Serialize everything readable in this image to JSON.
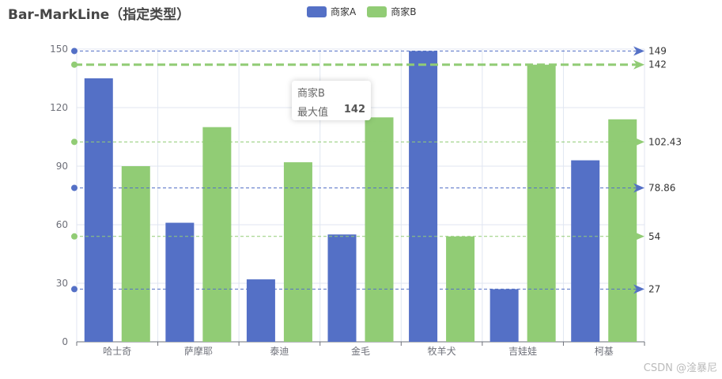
{
  "page": {
    "title": "Bar-MarkLine（指定类型）"
  },
  "colors": {
    "seriesA": "#5470c6",
    "seriesB": "#91cc75",
    "grid": "#e0e6f1",
    "axis": "#6e7079"
  },
  "legend": {
    "items": [
      "商家A",
      "商家B"
    ],
    "placement": "top-center"
  },
  "tooltip": {
    "series_name": "商家B",
    "label": "最大值",
    "value": "142"
  },
  "watermark": "CSDN @淦暴尼",
  "chart_data": {
    "type": "bar",
    "categories": [
      "哈士奇",
      "萨摩耶",
      "泰迪",
      "金毛",
      "牧羊犬",
      "吉娃娃",
      "柯基"
    ],
    "series": [
      {
        "name": "商家A",
        "values": [
          135,
          61,
          32,
          55,
          149,
          27,
          93
        ]
      },
      {
        "name": "商家B",
        "values": [
          90,
          110,
          92,
          115,
          54,
          142,
          114
        ]
      }
    ],
    "ylim": [
      0,
      150
    ],
    "yticks": [
      0,
      30,
      60,
      90,
      120,
      150
    ],
    "grid": true,
    "markLines": [
      {
        "series": "商家A",
        "type": "max",
        "value": 149,
        "label": "149"
      },
      {
        "series": "商家A",
        "type": "average",
        "value": 78.86,
        "label": "78.86"
      },
      {
        "series": "商家A",
        "type": "min",
        "value": 27,
        "label": "27"
      },
      {
        "series": "商家B",
        "type": "max",
        "value": 142,
        "label": "142"
      },
      {
        "series": "商家B",
        "type": "average",
        "value": 102.43,
        "label": "102.43"
      },
      {
        "series": "商家B",
        "type": "min",
        "value": 54,
        "label": "54"
      }
    ]
  }
}
